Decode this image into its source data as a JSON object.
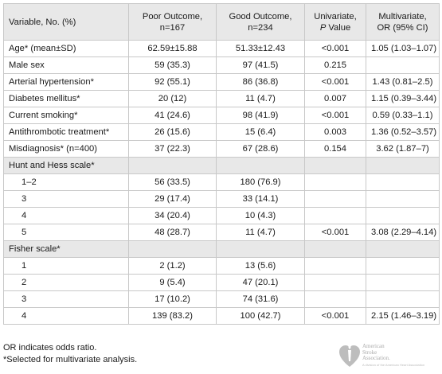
{
  "table": {
    "headers": {
      "variable": "Variable, No. (%)",
      "poor_line1": "Poor Outcome,",
      "poor_line2": "n=167",
      "good_line1": "Good Outcome,",
      "good_line2": "n=234",
      "univ_line1": "Univariate,",
      "univ_p": "P",
      "univ_value": " Value",
      "multi_line1": "Multivariate,",
      "multi_line2": "OR (95% CI)"
    },
    "rows": [
      {
        "label": "Age* (mean±SD)",
        "poor": "62.59±15.88",
        "good": "51.33±12.43",
        "uni": "<0.001",
        "multi": "1.05 (1.03–1.07)"
      },
      {
        "label": "Male sex",
        "poor": "59 (35.3)",
        "good": "97 (41.5)",
        "uni": "0.215",
        "multi": ""
      },
      {
        "label": "Arterial hypertension*",
        "poor": "92 (55.1)",
        "good": "86 (36.8)",
        "uni": "<0.001",
        "multi": "1.43 (0.81–2.5)"
      },
      {
        "label": "Diabetes mellitus*",
        "poor": "20 (12)",
        "good": "11 (4.7)",
        "uni": "0.007",
        "multi": "1.15 (0.39–3.44)"
      },
      {
        "label": "Current smoking*",
        "poor": "41 (24.6)",
        "good": "98 (41.9)",
        "uni": "<0.001",
        "multi": "0.59 (0.33–1.1)"
      },
      {
        "label": "Antithrombotic treatment*",
        "poor": "26 (15.6)",
        "good": "15 (6.4)",
        "uni": "0.003",
        "multi": "1.36 (0.52–3.57)"
      },
      {
        "label": "Misdiagnosis* (n=400)",
        "poor": "37 (22.3)",
        "good": "67 (28.6)",
        "uni": "0.154",
        "multi": "3.62 (1.87–7)"
      }
    ],
    "hunt_hess": {
      "title": "Hunt and Hess scale*",
      "rows": [
        {
          "label": "1–2",
          "poor": "56 (33.5)",
          "good": "180 (76.9)",
          "uni": "",
          "multi": ""
        },
        {
          "label": "3",
          "poor": "29 (17.4)",
          "good": "33 (14.1)",
          "uni": "",
          "multi": ""
        },
        {
          "label": "4",
          "poor": "34 (20.4)",
          "good": "10 (4.3)",
          "uni": "",
          "multi": ""
        },
        {
          "label": "5",
          "poor": "48 (28.7)",
          "good": "11 (4.7)",
          "uni": "<0.001",
          "multi": "3.08 (2.29–4.14)"
        }
      ]
    },
    "fisher": {
      "title": "Fisher scale*",
      "rows": [
        {
          "label": "1",
          "poor": "2 (1.2)",
          "good": "13 (5.6)",
          "uni": "",
          "multi": ""
        },
        {
          "label": "2",
          "poor": "9 (5.4)",
          "good": "47 (20.1)",
          "uni": "",
          "multi": ""
        },
        {
          "label": "3",
          "poor": "17 (10.2)",
          "good": "74 (31.6)",
          "uni": "",
          "multi": ""
        },
        {
          "label": "4",
          "poor": "139 (83.2)",
          "good": "100 (42.7)",
          "uni": "<0.001",
          "multi": "2.15 (1.46–3.19)"
        }
      ]
    }
  },
  "footnotes": {
    "or": "OR indicates odds ratio.",
    "selected": "*Selected for multivariate analysis."
  },
  "logo": {
    "name_line1": "American",
    "name_line2": "Stroke",
    "name_line3": "Association.",
    "tagline": "A division of the American Heart Association",
    "color": "#bbbbbb"
  }
}
